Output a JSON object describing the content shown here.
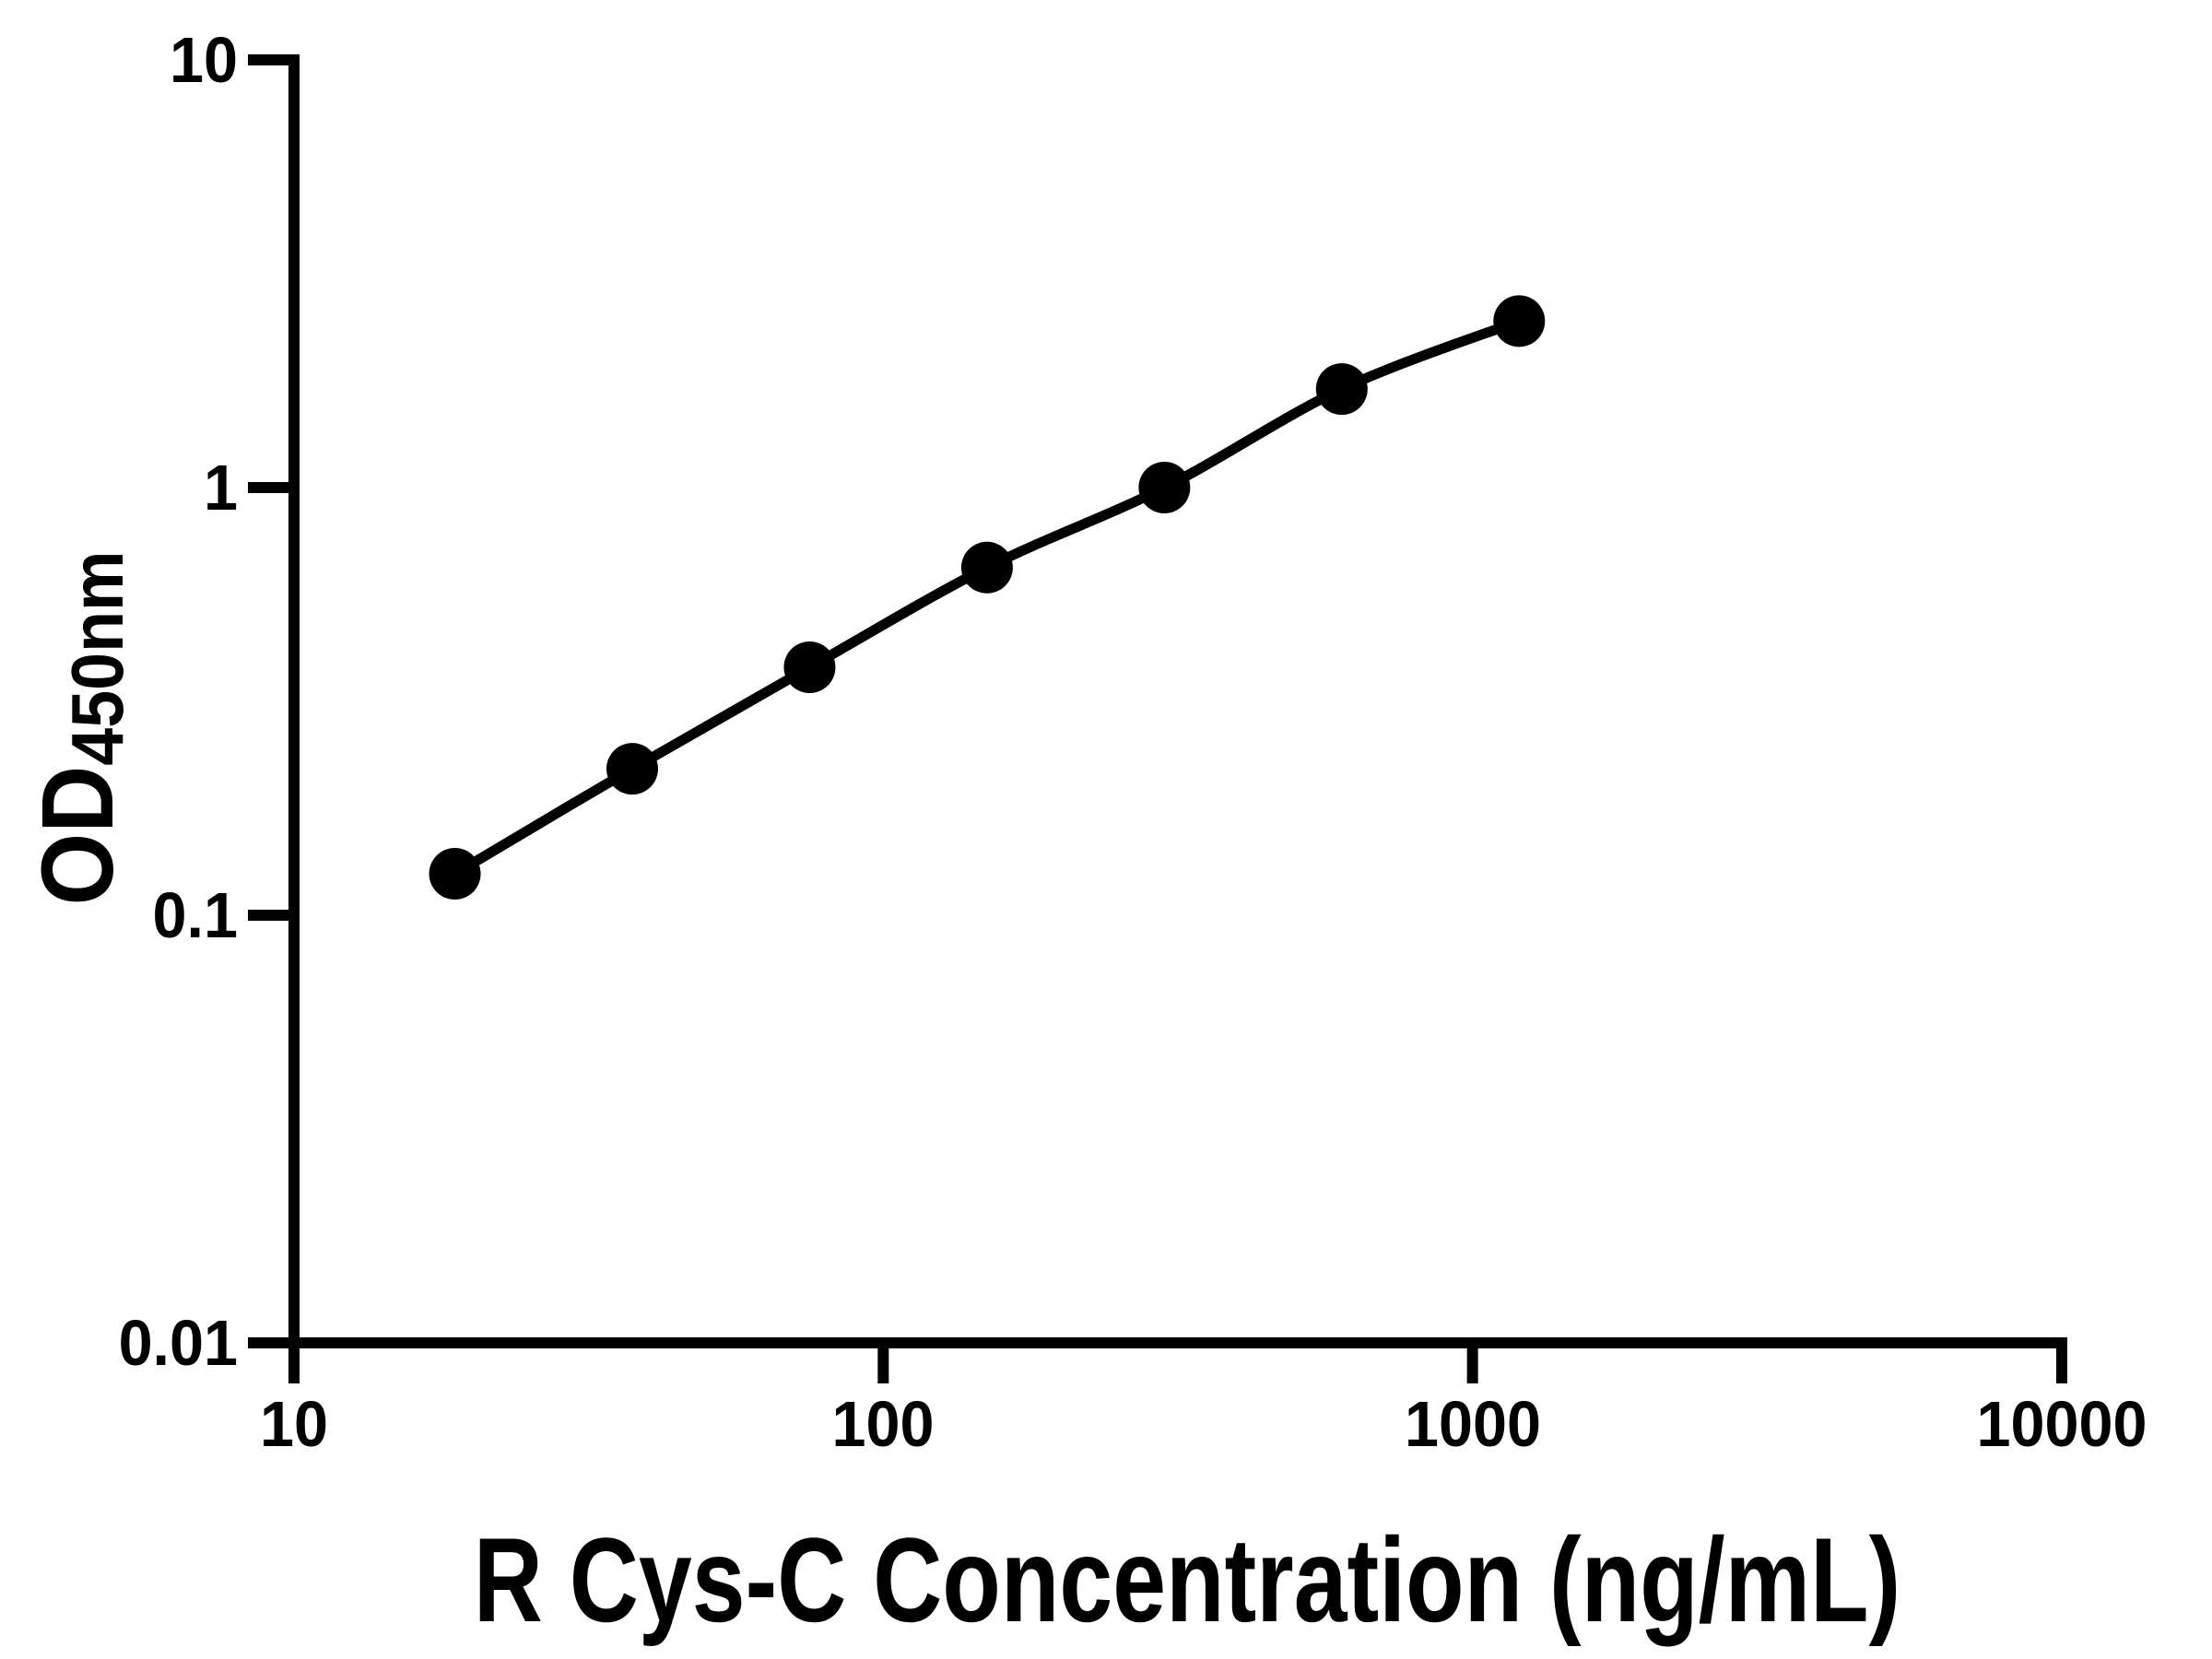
{
  "page": {
    "background_color": "#ffffff",
    "ink_color": "#000000"
  },
  "chart_data": {
    "type": "scatter",
    "title": "",
    "xlabel": "R Cys-C Concentration (ng/mL)",
    "ylabel_main": "OD",
    "ylabel_sub": "450nm",
    "xscale": "log",
    "yscale": "log",
    "xlim": [
      10,
      10000
    ],
    "ylim": [
      0.01,
      10
    ],
    "grid": false,
    "legend": null,
    "x": [
      18.75,
      37.5,
      75,
      150,
      300,
      600,
      1200
    ],
    "y": [
      0.125,
      0.22,
      0.38,
      0.65,
      1.0,
      1.7,
      2.45
    ],
    "x_tick_values": [
      10,
      100,
      1000,
      10000
    ],
    "x_tick_labels": [
      "10",
      "100",
      "1000",
      "10000"
    ],
    "y_tick_values": [
      10,
      1,
      0.1,
      0.01
    ],
    "y_tick_labels": [
      "10",
      "1",
      "0.1",
      "0.01"
    ],
    "line_color": "#000000",
    "marker_color": "#000000",
    "axis_color": "#000000"
  }
}
